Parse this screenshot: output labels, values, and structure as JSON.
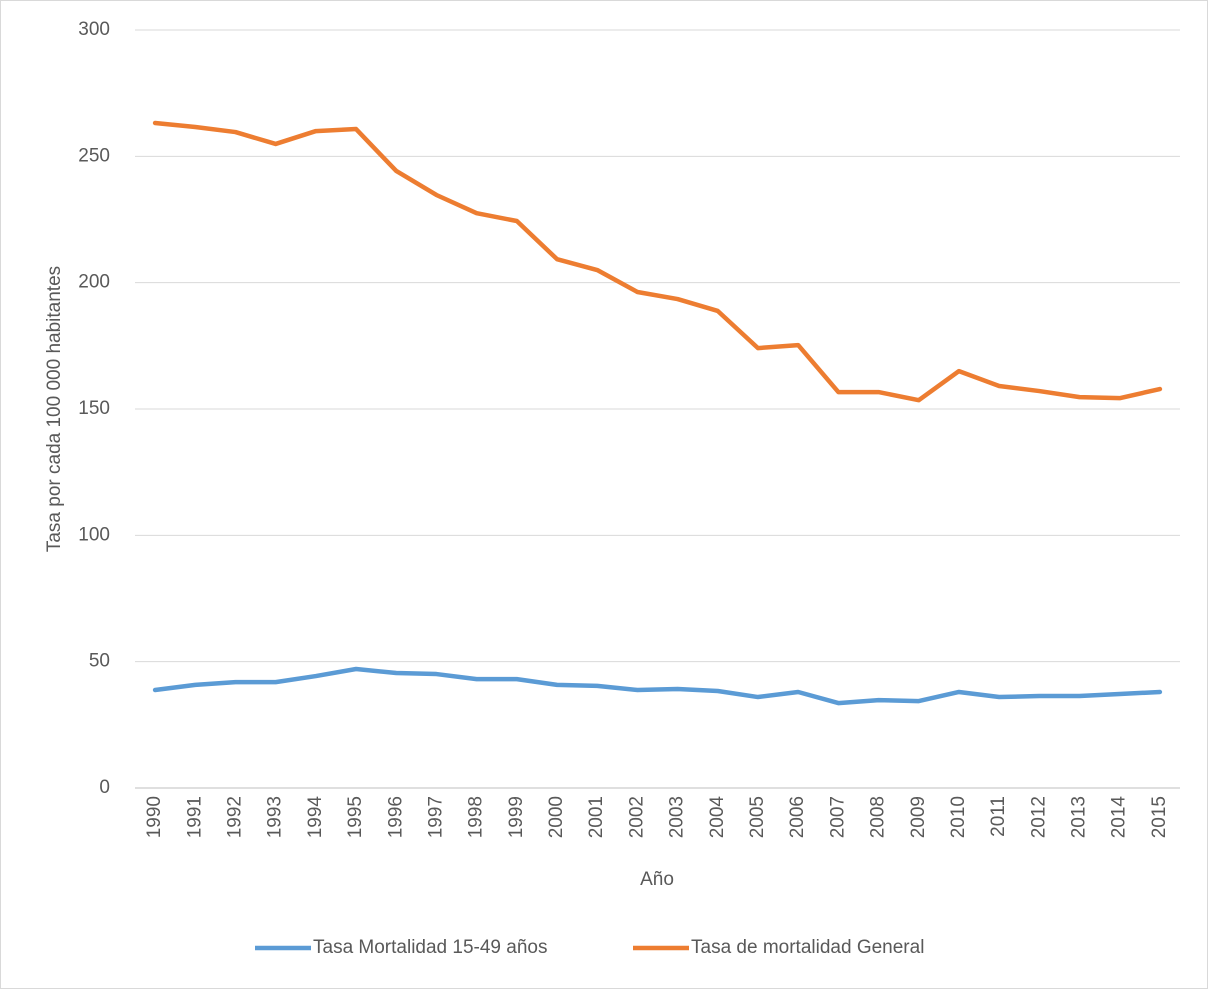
{
  "chart_data": {
    "type": "line",
    "x_label": "Año",
    "y_label": "Tasa por cada 100 000 habitantes",
    "categories": [
      "1990",
      "1991",
      "1992",
      "1993",
      "1994",
      "1995",
      "1996",
      "1997",
      "1998",
      "1999",
      "2000",
      "2001",
      "2002",
      "2003",
      "2004",
      "2005",
      "2006",
      "2007",
      "2008",
      "2009",
      "2010",
      "2011",
      "2012",
      "2013",
      "2014",
      "2015"
    ],
    "series": [
      {
        "name": "Tasa Mortalidad 15-49 años",
        "color": "#5b9bd5",
        "values": [
          38.8,
          40.8,
          41.9,
          41.9,
          44.3,
          47.1,
          45.5,
          45.1,
          43.1,
          43.1,
          40.8,
          40.4,
          38.8,
          39.2,
          38.4,
          36.0,
          38.0,
          33.6,
          34.8,
          34.4,
          38.0,
          36.0,
          36.4,
          36.4,
          37.2,
          38.0
        ]
      },
      {
        "name": "Tasa de mortalidad General",
        "color": "#ed7d31",
        "values": [
          263.2,
          261.6,
          259.6,
          254.9,
          260.0,
          260.8,
          244.2,
          234.7,
          227.5,
          224.4,
          209.3,
          205.0,
          196.3,
          193.5,
          188.8,
          174.1,
          175.3,
          156.7,
          156.7,
          153.5,
          165.0,
          159.1,
          157.1,
          154.7,
          154.3,
          157.9
        ]
      }
    ],
    "ylim": [
      0,
      300
    ],
    "yticks": [
      0,
      50,
      100,
      150,
      200,
      250,
      300
    ],
    "grid": true,
    "legend": "bottom"
  }
}
